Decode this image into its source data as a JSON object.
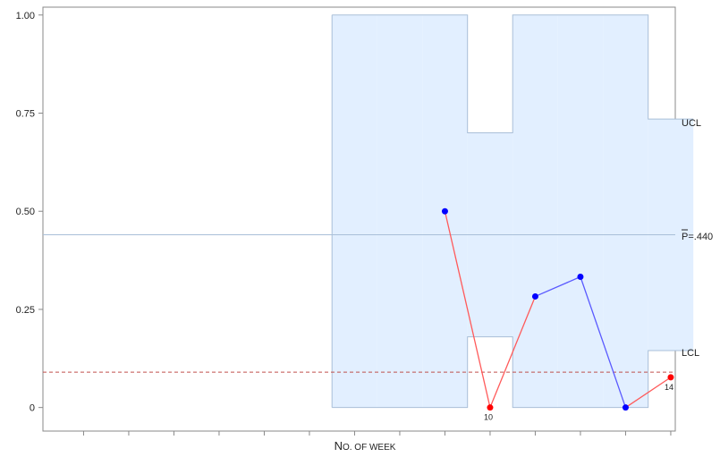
{
  "chart_data": {
    "type": "line",
    "chart_kind": "p-chart",
    "x": [
      1,
      2,
      3,
      4,
      5,
      6,
      7,
      8,
      9,
      10,
      11,
      12,
      13,
      14
    ],
    "xlim": [
      0.1,
      14.1
    ],
    "ylim": [
      -0.06,
      1.02
    ],
    "yticks": [
      0,
      0.25,
      0.5,
      0.75,
      1.0
    ],
    "ytick_labels": [
      "0",
      "0.25",
      "0.50",
      "0.75",
      "1.00"
    ],
    "xlabel_first": "N",
    "xlabel_first_rest": "O",
    "xlabel_rest": ". OF WEEK",
    "center_line": 0.44,
    "center_label_symbol": "P",
    "center_label_value": "=.440",
    "ucl_label": "UCL",
    "lcl_label": "LCL",
    "overall_lcl_reference": 0.09,
    "points": [
      {
        "x": 9,
        "y": 0.5,
        "out": false,
        "label": ""
      },
      {
        "x": 10,
        "y": 0.0,
        "out": true,
        "label": "10"
      },
      {
        "x": 11,
        "y": 0.283,
        "out": false,
        "label": ""
      },
      {
        "x": 12,
        "y": 0.333,
        "out": false,
        "label": ""
      },
      {
        "x": 13,
        "y": 0.0,
        "out": false,
        "label": ""
      },
      {
        "x": 14,
        "y": 0.077,
        "out": true,
        "label": "14"
      }
    ],
    "limits": [
      {
        "x": 7,
        "lcl": 0,
        "ucl": 1.0
      },
      {
        "x": 8,
        "lcl": 0,
        "ucl": 1.0
      },
      {
        "x": 9,
        "lcl": 0,
        "ucl": 1.0
      },
      {
        "x": 10,
        "lcl": 0.18,
        "ucl": 0.7
      },
      {
        "x": 11,
        "lcl": 0,
        "ucl": 1.0
      },
      {
        "x": 12,
        "lcl": 0,
        "ucl": 1.0
      },
      {
        "x": 13,
        "lcl": 0,
        "ucl": 1.0
      },
      {
        "x": 14,
        "lcl": 0.145,
        "ucl": 0.735
      }
    ],
    "colors": {
      "band_fill": "#e2efff",
      "band_edge": "#a9bfd8",
      "in_control": "#0000ff",
      "in_line": "#5a5aff",
      "out_control": "#ff0000",
      "out_line": "#ff5a5a",
      "center": "#a9bfd8",
      "ref_dash": "#c0504d",
      "frame": "#888888"
    }
  }
}
